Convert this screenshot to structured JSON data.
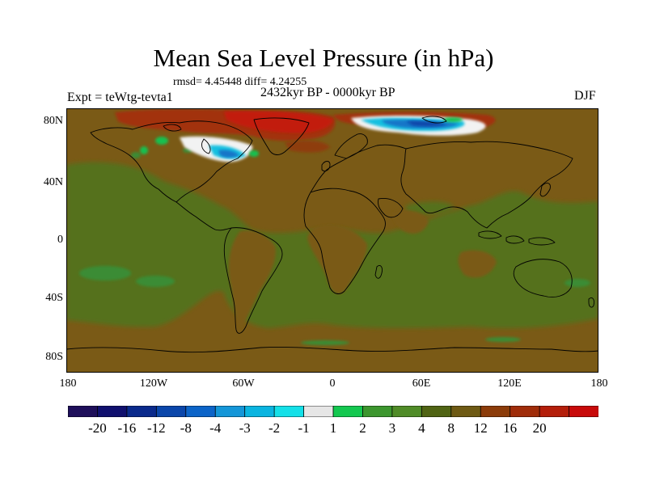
{
  "title": "Mean Sea Level Pressure (in hPa)",
  "stats": "rmsd= 4.45448 diff= 4.24255",
  "experiment": "Expt = teWtg-tevta1",
  "period": "2432kyr BP - 0000kyr BP",
  "season": "DJF",
  "lat_labels": [
    "80N",
    "40N",
    "0",
    "40S",
    "80S"
  ],
  "lon_labels": [
    "180",
    "120W",
    "60W",
    "0",
    "60E",
    "120E",
    "180"
  ],
  "colorbar": {
    "colors": [
      "#1e0f5a",
      "#10106e",
      "#0a2a8c",
      "#0a46aa",
      "#0c64c8",
      "#1496d8",
      "#0ab4e0",
      "#14e0e8",
      "#e6e6e6",
      "#14c850",
      "#3c962e",
      "#508c28",
      "#506414",
      "#6e5a14",
      "#8c3c0a",
      "#a02d0a",
      "#b41e0a",
      "#c80a0a"
    ],
    "labels": [
      "-20",
      "-16",
      "-12",
      "-8",
      "-4",
      "-3",
      "-2",
      "-1",
      "1",
      "2",
      "3",
      "4",
      "8",
      "12",
      "16",
      "20"
    ]
  },
  "legend_colors": {
    "land_olive": "#7a5a16",
    "ocean_green": "#55711e",
    "light_green": "#3c9a3a",
    "red": "#c0210e",
    "blue": "#1476c8",
    "white": "#f0f0f0"
  }
}
